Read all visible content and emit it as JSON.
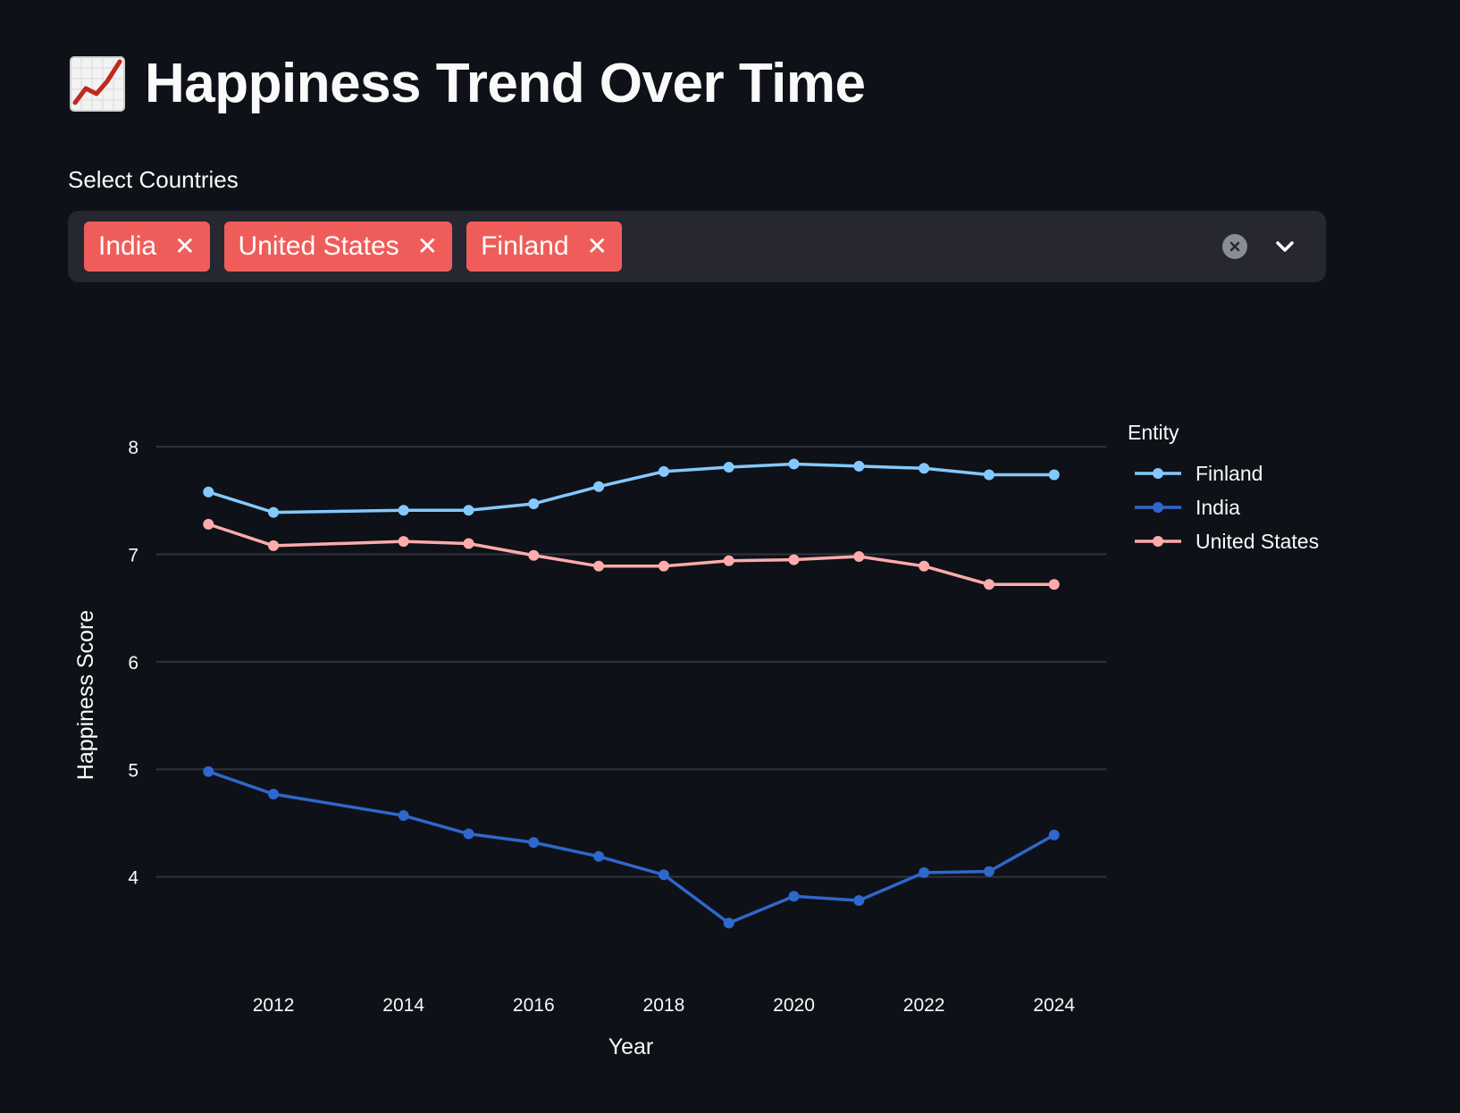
{
  "header": {
    "title": "Happiness Trend Over Time",
    "title_icon": "chart-increasing-icon"
  },
  "country_select": {
    "label": "Select Countries",
    "selected": [
      "India",
      "United States",
      "Finland"
    ],
    "remove_icon": "close-icon",
    "clear_icon": "clear-all-icon",
    "dropdown_icon": "chevron-down-icon",
    "chip_color": "#ef5d5a"
  },
  "chart_data": {
    "type": "line",
    "xlabel": "Year",
    "ylabel": "Happiness Score",
    "legend_title": "Entity",
    "legend_position": "right",
    "grid": true,
    "xlim": [
      2010.2,
      2024.8
    ],
    "ylim": [
      3.1,
      8.5
    ],
    "x_ticks": [
      2012,
      2014,
      2016,
      2018,
      2020,
      2022,
      2024
    ],
    "y_ticks": [
      4,
      5,
      6,
      7,
      8
    ],
    "x": [
      2011,
      2012,
      2014,
      2015,
      2016,
      2017,
      2018,
      2019,
      2020,
      2021,
      2022,
      2023,
      2024
    ],
    "series": [
      {
        "name": "Finland",
        "color": "#83c9ff",
        "values": [
          7.58,
          7.39,
          7.41,
          7.41,
          7.47,
          7.63,
          7.77,
          7.81,
          7.84,
          7.82,
          7.8,
          7.74,
          7.74
        ]
      },
      {
        "name": "India",
        "color": "#2f67cc",
        "values": [
          4.98,
          4.77,
          4.57,
          4.4,
          4.32,
          4.19,
          4.02,
          3.57,
          3.82,
          3.78,
          4.04,
          4.05,
          4.39
        ]
      },
      {
        "name": "United States",
        "color": "#ffabab",
        "values": [
          7.28,
          7.08,
          7.12,
          7.1,
          6.99,
          6.89,
          6.89,
          6.94,
          6.95,
          6.98,
          6.89,
          6.72,
          6.72
        ]
      }
    ]
  }
}
